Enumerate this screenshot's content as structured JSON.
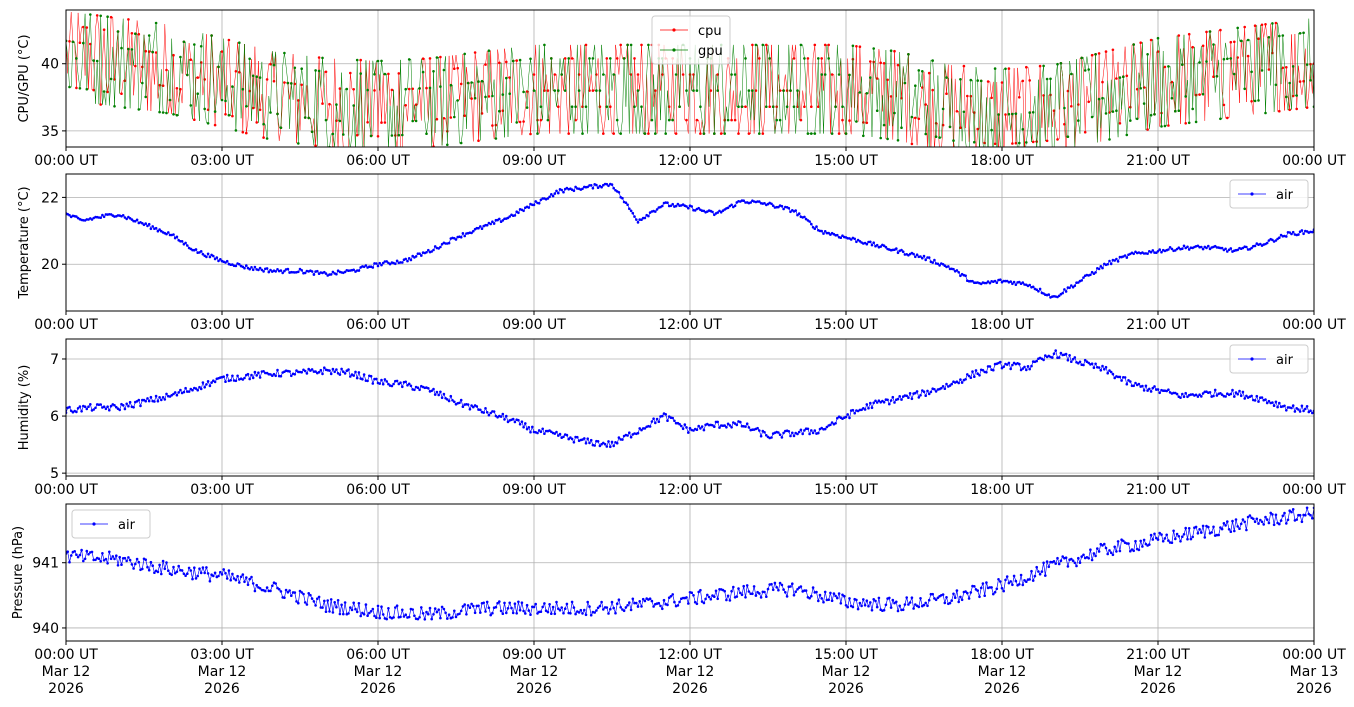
{
  "chart_data": [
    {
      "type": "line",
      "ylabel": "CPU/GPU (°C)",
      "ylim": [
        33.8,
        44.0
      ],
      "yticks": [
        35,
        40
      ],
      "xticks": [
        "00:00 UT",
        "03:00 UT",
        "06:00 UT",
        "09:00 UT",
        "12:00 UT",
        "15:00 UT",
        "18:00 UT",
        "21:00 UT",
        "00:00 UT"
      ],
      "xlim_hours": [
        0,
        24
      ],
      "grid": true,
      "legend": "top-center",
      "series": [
        {
          "name": "cpu",
          "color": "#ff0000",
          "style": "jumpy",
          "hours": [
            0,
            1,
            2,
            3,
            4,
            5,
            6,
            7,
            8,
            9,
            10,
            11,
            12,
            13,
            14,
            15,
            16,
            17,
            18,
            19,
            20,
            21,
            22,
            23,
            24
          ],
          "values": [
            40.5,
            40,
            39.5,
            38.5,
            37.5,
            37,
            36.8,
            37,
            37.5,
            38,
            38,
            38,
            38,
            38,
            38,
            38,
            37.5,
            36.5,
            36.2,
            36.5,
            37.5,
            38.5,
            39,
            39.5,
            40
          ]
        },
        {
          "name": "gpu",
          "color": "#008000",
          "style": "jumpy",
          "hours": [
            0,
            1,
            2,
            3,
            4,
            5,
            6,
            7,
            8,
            9,
            10,
            11,
            12,
            13,
            14,
            15,
            16,
            17,
            18,
            19,
            20,
            21,
            22,
            23,
            24
          ],
          "values": [
            40.5,
            40,
            39.5,
            38.5,
            37.5,
            37,
            36.8,
            37,
            37.5,
            38,
            38,
            38,
            38,
            38,
            38,
            38,
            37.5,
            36.5,
            36.2,
            36.5,
            37.5,
            38.5,
            39,
            39.5,
            40
          ]
        }
      ]
    },
    {
      "type": "line",
      "ylabel": "Temperature (°C)",
      "ylim": [
        18.6,
        22.7
      ],
      "yticks": [
        20,
        22
      ],
      "xticks": [
        "00:00 UT",
        "03:00 UT",
        "06:00 UT",
        "09:00 UT",
        "12:00 UT",
        "15:00 UT",
        "18:00 UT",
        "21:00 UT",
        "00:00 UT"
      ],
      "xlim_hours": [
        0,
        24
      ],
      "grid": true,
      "legend": "top-right",
      "series": [
        {
          "name": "air",
          "color": "#0000ff",
          "style": "smooth",
          "hours": [
            0,
            0.3,
            0.6,
            1,
            1.5,
            2,
            2.5,
            3,
            3.5,
            4,
            4.5,
            5,
            5.5,
            6,
            6.5,
            7,
            7.5,
            8,
            8.5,
            9,
            9.5,
            10,
            10.5,
            11,
            11.5,
            12,
            12.5,
            13,
            13.5,
            14,
            14.5,
            15,
            15.5,
            16,
            16.5,
            17,
            17.5,
            18,
            18.5,
            19,
            19.5,
            20,
            20.5,
            21,
            21.5,
            22,
            22.5,
            23,
            23.5,
            24
          ],
          "values": [
            21.5,
            21.3,
            21.4,
            21.5,
            21.2,
            20.9,
            20.4,
            20.1,
            19.9,
            19.8,
            19.8,
            19.7,
            19.8,
            20.0,
            20.1,
            20.4,
            20.8,
            21.1,
            21.4,
            21.8,
            22.2,
            22.3,
            22.4,
            21.3,
            21.8,
            21.7,
            21.5,
            21.9,
            21.8,
            21.6,
            21.0,
            20.8,
            20.6,
            20.4,
            20.2,
            19.9,
            19.4,
            19.5,
            19.4,
            19.0,
            19.5,
            20.0,
            20.3,
            20.4,
            20.5,
            20.5,
            20.4,
            20.6,
            20.9,
            21.0
          ]
        }
      ]
    },
    {
      "type": "line",
      "ylabel": "Humidity (%)",
      "ylim": [
        4.95,
        7.35
      ],
      "yticks": [
        5,
        6,
        7
      ],
      "xticks": [
        "00:00 UT",
        "03:00 UT",
        "06:00 UT",
        "09:00 UT",
        "12:00 UT",
        "15:00 UT",
        "18:00 UT",
        "21:00 UT",
        "00:00 UT"
      ],
      "xlim_hours": [
        0,
        24
      ],
      "grid": true,
      "legend": "top-right",
      "series": [
        {
          "name": "air",
          "color": "#0000ff",
          "style": "smooth",
          "hours": [
            0,
            0.5,
            1,
            1.5,
            2,
            2.5,
            3,
            3.5,
            4,
            4.5,
            5,
            5.5,
            6,
            6.5,
            7,
            7.5,
            8,
            8.5,
            9,
            9.5,
            10,
            10.5,
            11,
            11.5,
            12,
            12.5,
            13,
            13.5,
            14,
            14.5,
            15,
            15.5,
            16,
            16.5,
            17,
            17.5,
            18,
            18.5,
            19,
            19.5,
            20,
            20.5,
            21,
            21.5,
            22,
            22.5,
            23,
            23.5,
            24
          ],
          "values": [
            6.1,
            6.15,
            6.15,
            6.25,
            6.35,
            6.5,
            6.65,
            6.7,
            6.75,
            6.75,
            6.8,
            6.75,
            6.6,
            6.55,
            6.45,
            6.25,
            6.1,
            5.95,
            5.75,
            5.65,
            5.55,
            5.5,
            5.75,
            6.0,
            5.75,
            5.85,
            5.85,
            5.65,
            5.7,
            5.75,
            6.0,
            6.2,
            6.3,
            6.4,
            6.55,
            6.75,
            6.9,
            6.85,
            7.1,
            6.95,
            6.8,
            6.55,
            6.45,
            6.35,
            6.4,
            6.4,
            6.3,
            6.15,
            6.1
          ]
        }
      ]
    },
    {
      "type": "line",
      "ylabel": "Pressure (hPa)",
      "ylim": [
        939.8,
        941.9
      ],
      "yticks": [
        940,
        941
      ],
      "xticks": [
        "00:00 UT\nMar 12\n2026",
        "03:00 UT\nMar 12\n2026",
        "06:00 UT\nMar 12\n2026",
        "09:00 UT\nMar 12\n2026",
        "12:00 UT\nMar 12\n2026",
        "15:00 UT\nMar 12\n2026",
        "18:00 UT\nMar 12\n2026",
        "21:00 UT\nMar 12\n2026",
        "00:00 UT\nMar 13\n2026"
      ],
      "xlim_hours": [
        0,
        24
      ],
      "grid": true,
      "legend": "top-left",
      "series": [
        {
          "name": "air",
          "color": "#0000ff",
          "style": "noisy",
          "hours": [
            0,
            1,
            2,
            3,
            4,
            5,
            6,
            7,
            8,
            9,
            10,
            11,
            12,
            13,
            14,
            15,
            16,
            17,
            18,
            19,
            20,
            21,
            22,
            23,
            24
          ],
          "values": [
            941.1,
            941.05,
            940.9,
            940.8,
            940.6,
            940.35,
            940.25,
            940.2,
            940.3,
            940.3,
            940.3,
            940.35,
            940.45,
            940.55,
            940.6,
            940.4,
            940.35,
            940.45,
            940.65,
            940.95,
            941.2,
            941.35,
            941.5,
            941.65,
            941.75
          ]
        }
      ]
    }
  ]
}
